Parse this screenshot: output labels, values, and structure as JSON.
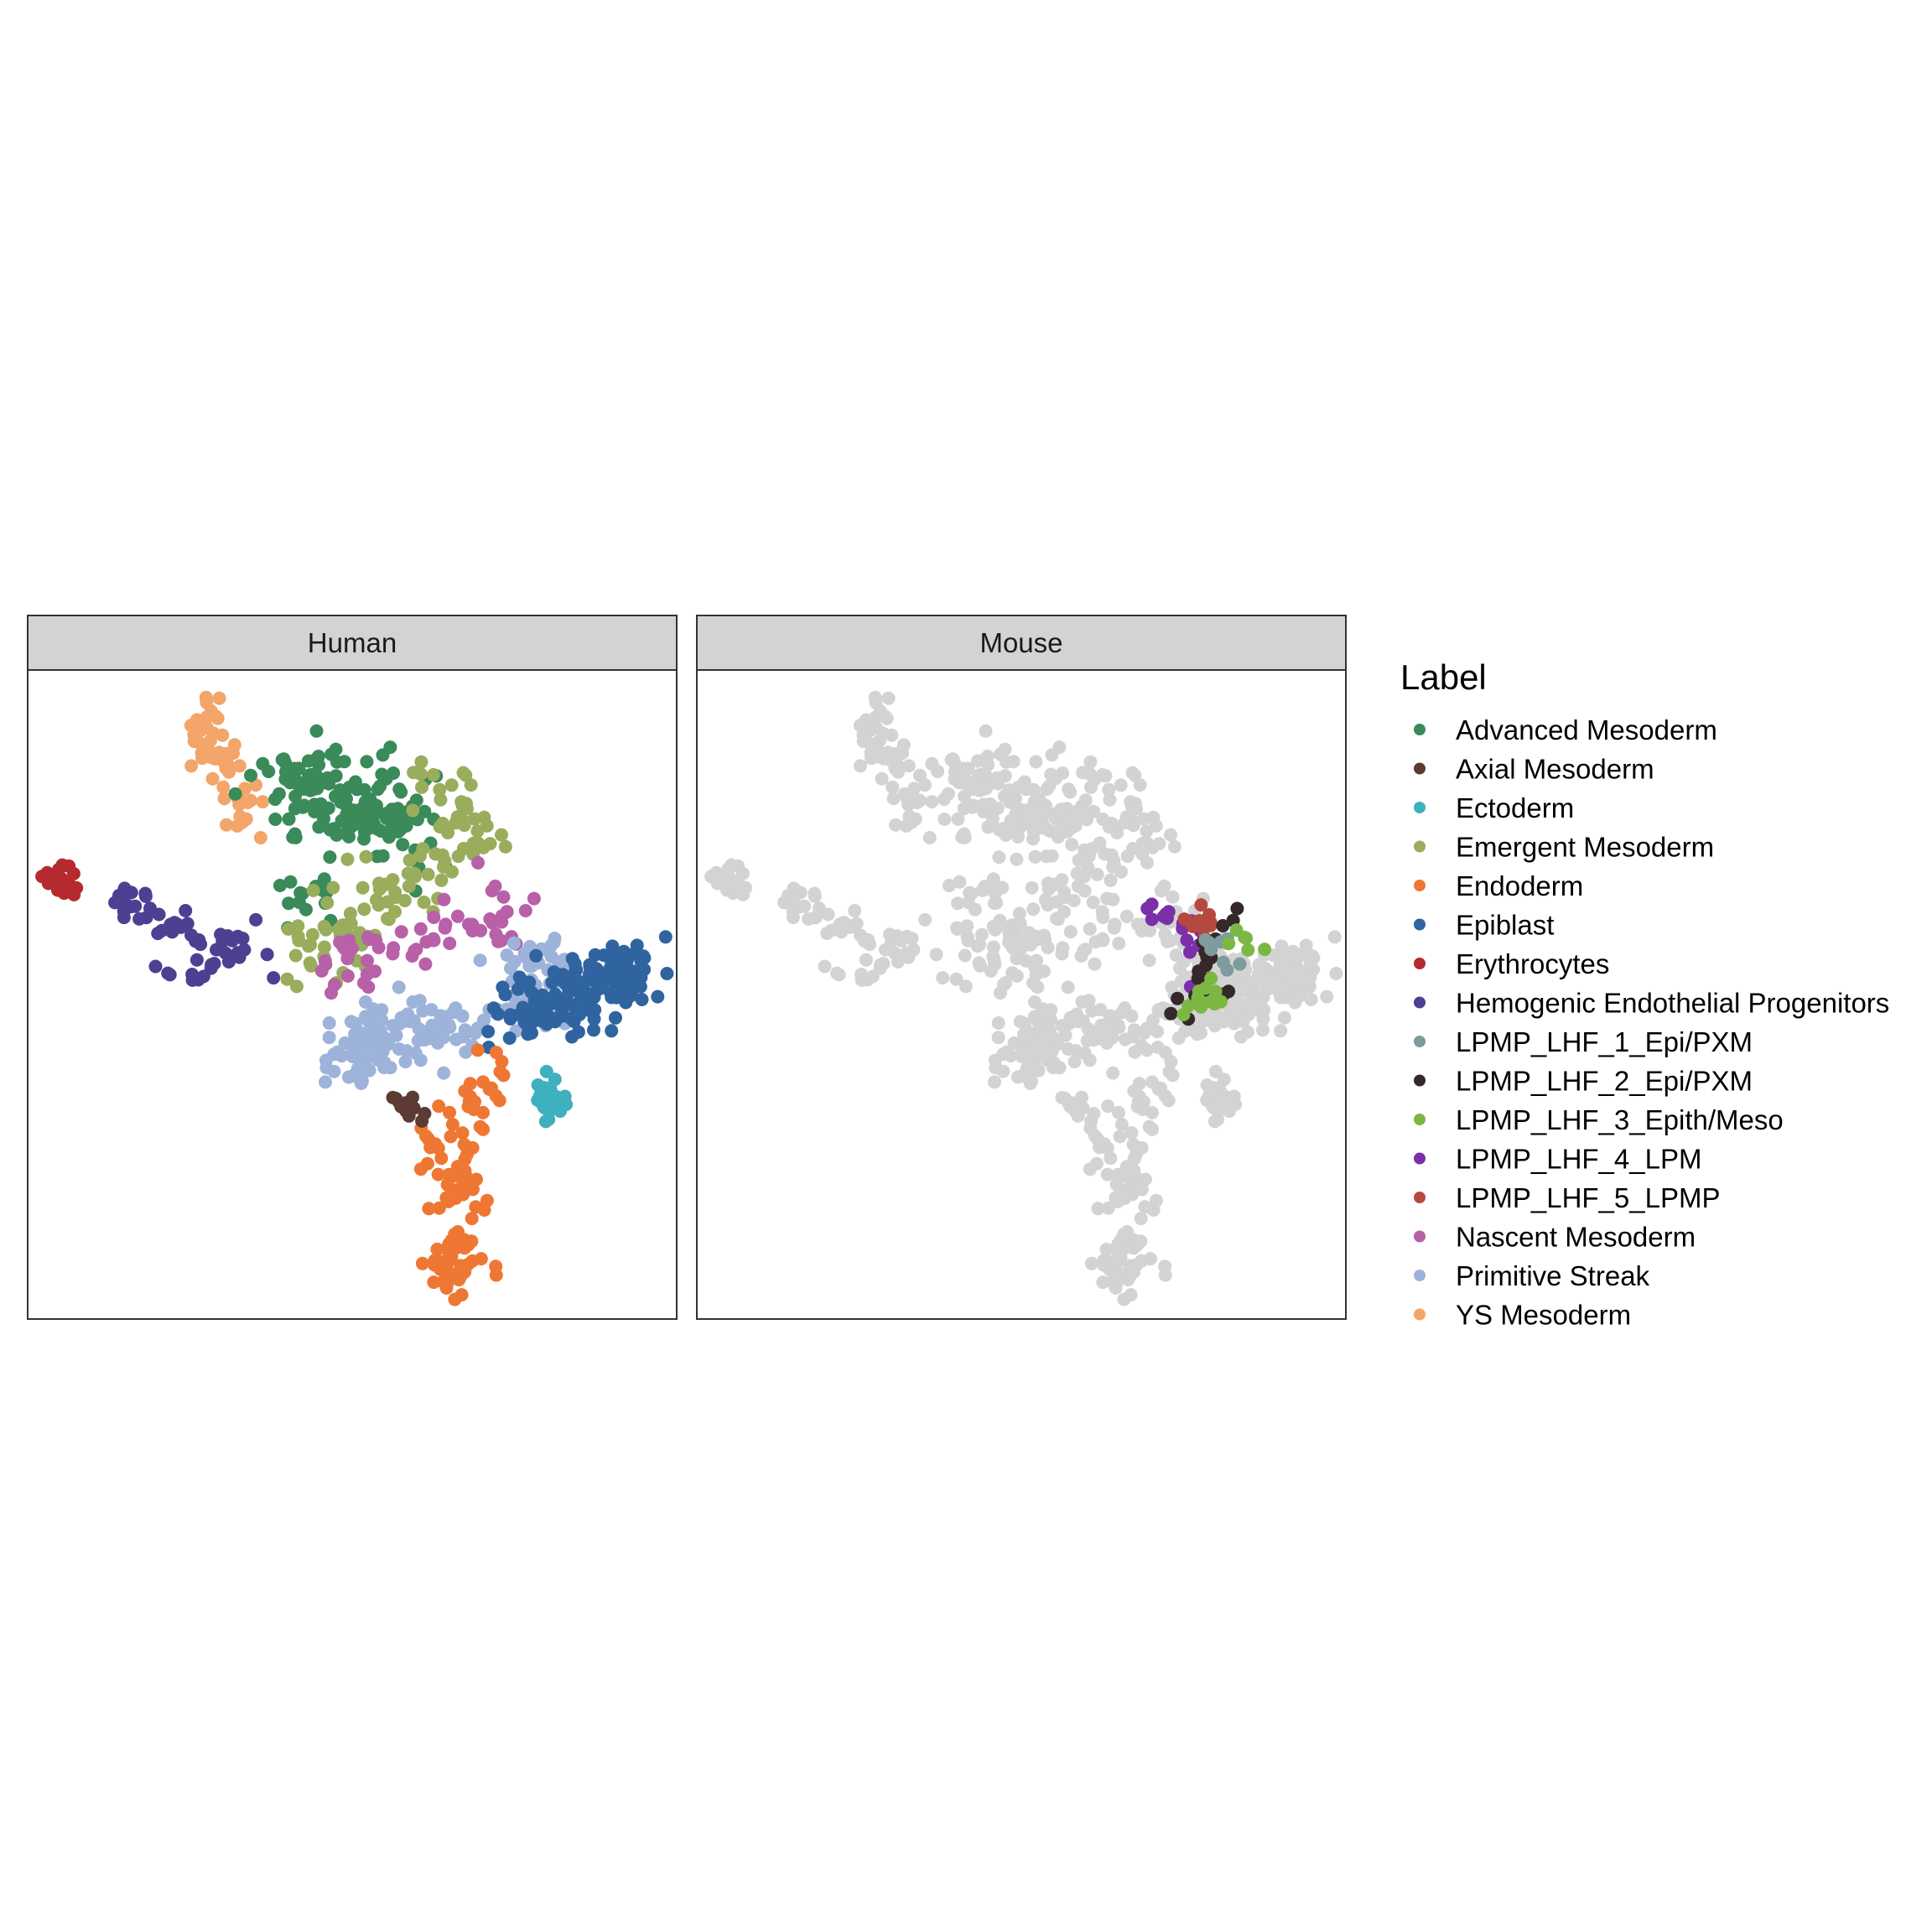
{
  "chart_data": {
    "type": "scatter",
    "panels": [
      {
        "name": "Human"
      },
      {
        "name": "Mouse"
      }
    ],
    "legend": {
      "title": "Label",
      "placement": "right",
      "items": [
        {
          "label": "Advanced Mesoderm",
          "color": "#3a8a5a"
        },
        {
          "label": "Axial Mesoderm",
          "color": "#5c3b35"
        },
        {
          "label": "Ectoderm",
          "color": "#3fb0bd"
        },
        {
          "label": "Emergent Mesoderm",
          "color": "#99ad5c"
        },
        {
          "label": "Endoderm",
          "color": "#ee7733"
        },
        {
          "label": "Epiblast",
          "color": "#2f64a0"
        },
        {
          "label": "Erythrocytes",
          "color": "#b52a2e"
        },
        {
          "label": "Hemogenic Endothelial Progenitors",
          "color": "#4e3f92"
        },
        {
          "label": "LPMP_LHF_1_Epi/PXM",
          "color": "#7e9b9e"
        },
        {
          "label": "LPMP_LHF_2_Epi/PXM",
          "color": "#35282b"
        },
        {
          "label": "LPMP_LHF_3_Epith/Meso",
          "color": "#7ab843"
        },
        {
          "label": "LPMP_LHF_4_LPM",
          "color": "#7b2fa8"
        },
        {
          "label": "LPMP_LHF_5_LPMP",
          "color": "#b6493f"
        },
        {
          "label": "Nascent Mesoderm",
          "color": "#b860a8"
        },
        {
          "label": "Primitive Streak",
          "color": "#9db3d9"
        },
        {
          "label": "YS Mesoderm",
          "color": "#f3a56a"
        }
      ]
    },
    "background_point_color": "#d3d3d3",
    "grid": false,
    "axes_shown": false,
    "clusters": [
      {
        "label": "YS Mesoderm",
        "n": 60,
        "pts": [
          [
            0.28,
            0.05
          ],
          [
            0.28,
            0.08
          ],
          [
            0.27,
            0.12
          ],
          [
            0.3,
            0.15
          ],
          [
            0.32,
            0.19
          ],
          [
            0.33,
            0.25
          ]
        ],
        "spread": 0.016
      },
      {
        "label": "Advanced Mesoderm",
        "n": 150,
        "pts": [
          [
            0.4,
            0.16
          ],
          [
            0.45,
            0.2
          ],
          [
            0.5,
            0.22
          ],
          [
            0.56,
            0.2
          ],
          [
            0.57,
            0.27
          ]
        ],
        "spread": 0.035
      },
      {
        "label": "Advanced Mesoderm",
        "n": 14,
        "pts": [
          [
            0.41,
            0.32
          ],
          [
            0.45,
            0.37
          ]
        ],
        "spread": 0.018
      },
      {
        "label": "Emergent Mesoderm",
        "n": 110,
        "pts": [
          [
            0.62,
            0.18
          ],
          [
            0.67,
            0.2
          ],
          [
            0.7,
            0.27
          ],
          [
            0.62,
            0.3
          ],
          [
            0.55,
            0.36
          ],
          [
            0.47,
            0.4
          ],
          [
            0.43,
            0.44
          ]
        ],
        "spread": 0.03
      },
      {
        "label": "Erythrocytes",
        "n": 24,
        "pts": [
          [
            0.04,
            0.32
          ],
          [
            0.06,
            0.33
          ]
        ],
        "spread": 0.012
      },
      {
        "label": "Hemogenic Endothelial Progenitors",
        "n": 55,
        "pts": [
          [
            0.13,
            0.35
          ],
          [
            0.2,
            0.38
          ],
          [
            0.28,
            0.42
          ],
          [
            0.36,
            0.43
          ],
          [
            0.2,
            0.48
          ]
        ],
        "spread": 0.018
      },
      {
        "label": "Nascent Mesoderm",
        "n": 60,
        "pts": [
          [
            0.72,
            0.33
          ],
          [
            0.76,
            0.38
          ],
          [
            0.62,
            0.42
          ],
          [
            0.52,
            0.43
          ],
          [
            0.45,
            0.48
          ]
        ],
        "spread": 0.022
      },
      {
        "label": "Primitive Streak",
        "n": 170,
        "pts": [
          [
            0.74,
            0.42
          ],
          [
            0.81,
            0.46
          ],
          [
            0.77,
            0.51
          ],
          [
            0.7,
            0.55
          ],
          [
            0.6,
            0.56
          ],
          [
            0.57,
            0.52
          ],
          [
            0.52,
            0.57
          ],
          [
            0.49,
            0.6
          ],
          [
            0.57,
            0.59
          ]
        ],
        "spread": 0.026
      },
      {
        "label": "Epiblast",
        "n": 160,
        "pts": [
          [
            0.91,
            0.44
          ],
          [
            0.92,
            0.49
          ],
          [
            0.86,
            0.5
          ],
          [
            0.8,
            0.51
          ],
          [
            0.73,
            0.53
          ]
        ],
        "spread": 0.025
      },
      {
        "label": "Ectoderm",
        "n": 30,
        "pts": [
          [
            0.79,
            0.64
          ],
          [
            0.81,
            0.68
          ]
        ],
        "spread": 0.013
      },
      {
        "label": "Endoderm",
        "n": 105,
        "pts": [
          [
            0.72,
            0.61
          ],
          [
            0.69,
            0.68
          ],
          [
            0.66,
            0.74
          ],
          [
            0.67,
            0.81
          ],
          [
            0.68,
            0.88
          ],
          [
            0.64,
            0.92
          ],
          [
            0.68,
            0.95
          ],
          [
            0.62,
            0.68
          ]
        ],
        "spread": 0.02
      },
      {
        "label": "Axial Mesoderm",
        "n": 14,
        "pts": [
          [
            0.57,
            0.67
          ],
          [
            0.6,
            0.67
          ]
        ],
        "spread": 0.011
      }
    ],
    "mouse_highlight": [
      {
        "label": "LPMP_LHF_4_LPM",
        "n": 16,
        "pts": [
          [
            0.68,
            0.37
          ],
          [
            0.72,
            0.38
          ],
          [
            0.76,
            0.38
          ],
          [
            0.78,
            0.5
          ]
        ],
        "spread": 0.012
      },
      {
        "label": "LPMP_LHF_5_LPMP",
        "n": 14,
        "pts": [
          [
            0.75,
            0.38
          ],
          [
            0.78,
            0.41
          ],
          [
            0.78,
            0.35
          ]
        ],
        "spread": 0.012
      },
      {
        "label": "LPMP_LHF_2_Epi/PXM",
        "n": 26,
        "pts": [
          [
            0.82,
            0.37
          ],
          [
            0.8,
            0.42
          ],
          [
            0.77,
            0.48
          ],
          [
            0.82,
            0.5
          ],
          [
            0.74,
            0.52
          ]
        ],
        "spread": 0.014
      },
      {
        "label": "LPMP_LHF_1_Epi/PXM",
        "n": 8,
        "pts": [
          [
            0.79,
            0.41
          ],
          [
            0.84,
            0.48
          ]
        ],
        "spread": 0.012
      },
      {
        "label": "LPMP_LHF_3_Epith/Meso",
        "n": 18,
        "pts": [
          [
            0.85,
            0.4
          ],
          [
            0.82,
            0.45
          ],
          [
            0.79,
            0.49
          ],
          [
            0.76,
            0.53
          ]
        ],
        "spread": 0.012
      }
    ]
  }
}
